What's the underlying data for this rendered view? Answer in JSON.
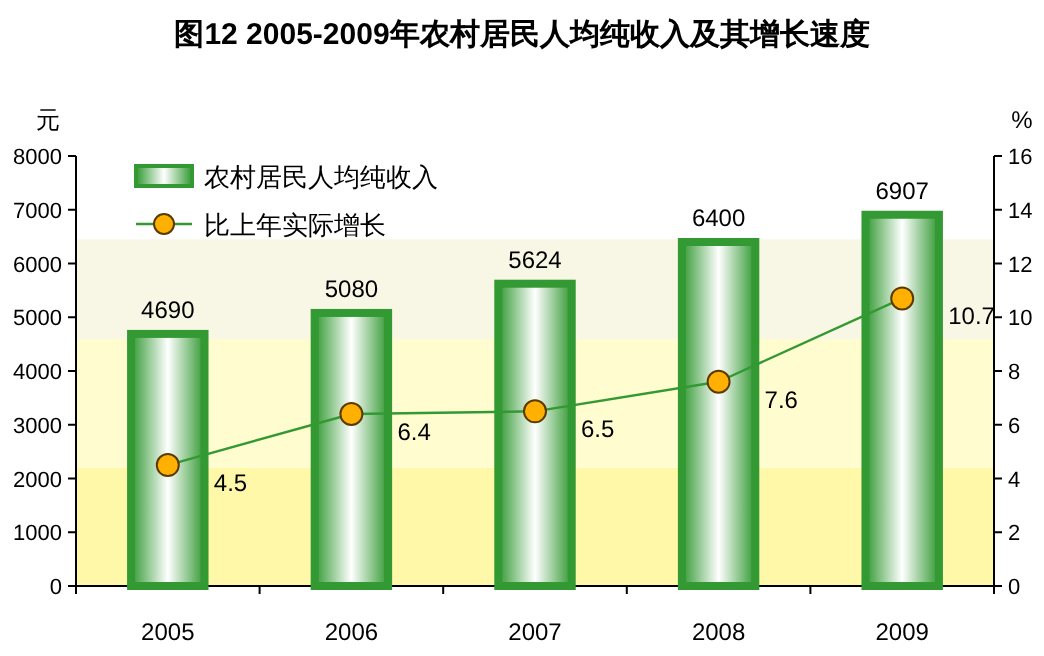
{
  "chart_data": {
    "type": "bar",
    "title": "图12  2005-2009年农村居民人均纯收入及其增长速度",
    "categories": [
      "2005",
      "2006",
      "2007",
      "2008",
      "2009"
    ],
    "series": [
      {
        "name": "农村居民人均纯收入",
        "color": "#339933",
        "values": [
          4690,
          5080,
          5624,
          6400,
          6907
        ]
      },
      {
        "name": "比上年实际增长",
        "type": "line",
        "axis": "y2",
        "color": "#339933",
        "marker": "circle",
        "values": [
          4.5,
          6.4,
          6.5,
          7.6,
          10.7
        ]
      }
    ],
    "ylabel": "元",
    "y2label": "%",
    "ylim": [
      0,
      8000
    ],
    "yticks": [
      0,
      1000,
      2000,
      3000,
      4000,
      5000,
      6000,
      7000,
      8000
    ],
    "y2lim": [
      0,
      16
    ],
    "y2ticks": [
      0,
      2,
      4,
      6,
      8,
      10,
      12,
      14,
      16
    ],
    "bands": [
      {
        "axis": "y",
        "from": 0,
        "to": 2200,
        "color": "#fff8a8"
      },
      {
        "axis": "y",
        "from": 2200,
        "to": 4600,
        "color": "#fffcd0"
      },
      {
        "axis": "y",
        "from": 4600,
        "to": 6450,
        "color": "#f8f6e4"
      }
    ],
    "data_labels": true,
    "legend": "top left",
    "grid": false
  }
}
